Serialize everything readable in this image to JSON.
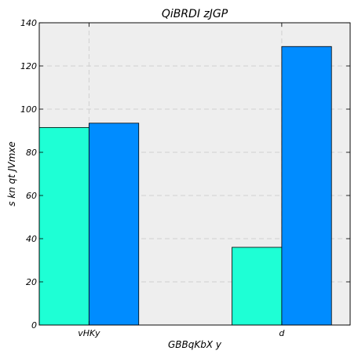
{
  "chart_data": {
    "type": "bar",
    "title": "QiBRDI zJGP",
    "xlabel": "GBBqKbX  y",
    "ylabel": "s kn qt JVmxe",
    "categories": [
      "vHKy",
      "d"
    ],
    "series": [
      {
        "values": [
          91.5,
          36
        ],
        "color": "#1effd5"
      },
      {
        "values": [
          93.5,
          129
        ],
        "color": "#008cff"
      }
    ],
    "ylim": [
      0,
      140
    ],
    "yticks": [
      0,
      20,
      40,
      60,
      80,
      100,
      120,
      140
    ],
    "grid": true,
    "plot_background": "#eeeeee"
  }
}
